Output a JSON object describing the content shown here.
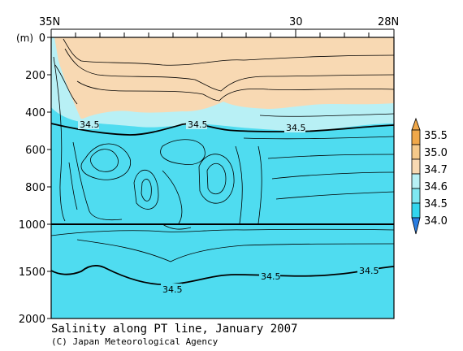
{
  "chart_data": {
    "type": "contour",
    "title": "Salinity along PT line, January 2007",
    "credit": "(C) Japan Meteorological Agency",
    "y_unit_label": "(m)",
    "x_ticks": [
      "35N",
      "30",
      "28N"
    ],
    "y_ticks_upper": [
      "0",
      "200",
      "400",
      "600",
      "800",
      "1000"
    ],
    "y_ticks_lower": [
      "1500",
      "2000"
    ],
    "y_range_upper": [
      0,
      1000
    ],
    "y_range_lower": [
      1000,
      2000
    ],
    "x_range": [
      "35N",
      "28N"
    ],
    "legend": {
      "placement": "right",
      "levels": [
        "35.5",
        "35.0",
        "34.7",
        "34.6",
        "34.5",
        "34.0"
      ],
      "colors": [
        "#f0a84a",
        "#f5c98a",
        "#f8d9b3",
        "#b8f0f5",
        "#7fe8f2",
        "#33d6ee",
        "#2a7de1"
      ]
    },
    "contour_labels": [
      "34.5",
      "34.5",
      "34.5",
      "34.5",
      "34.5",
      "34.5"
    ],
    "colors": {
      "fresh": "#f8d9b3",
      "mid": "#b8f0f5",
      "deep": "#4fdcf0"
    }
  }
}
